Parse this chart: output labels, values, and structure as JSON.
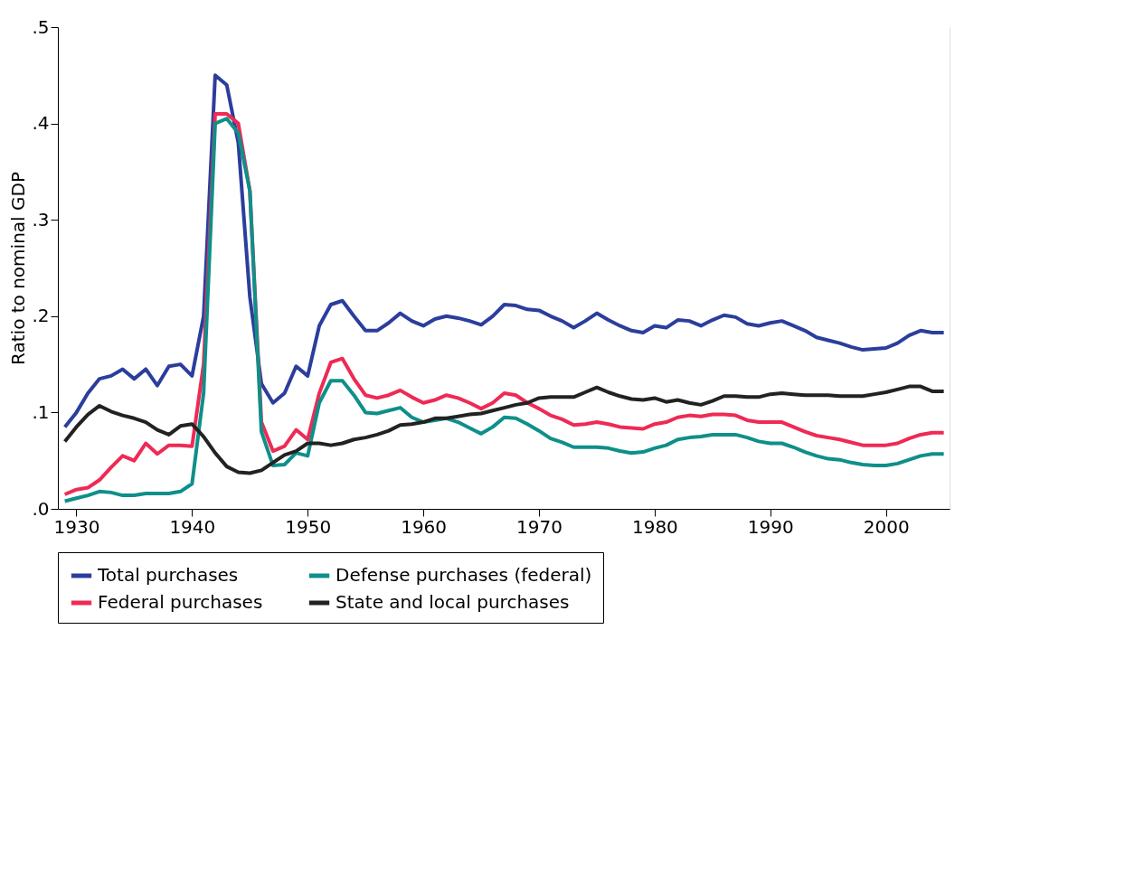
{
  "chart_data": {
    "type": "line",
    "ylabel": "Ratio to nominal GDP",
    "x": [
      1929,
      1930,
      1931,
      1932,
      1933,
      1934,
      1935,
      1936,
      1937,
      1938,
      1939,
      1940,
      1941,
      1942,
      1943,
      1944,
      1945,
      1946,
      1947,
      1948,
      1949,
      1950,
      1951,
      1952,
      1953,
      1954,
      1955,
      1956,
      1957,
      1958,
      1959,
      1960,
      1961,
      1962,
      1963,
      1964,
      1965,
      1966,
      1967,
      1968,
      1969,
      1970,
      1971,
      1972,
      1973,
      1974,
      1975,
      1976,
      1977,
      1978,
      1979,
      1980,
      1981,
      1982,
      1983,
      1984,
      1985,
      1986,
      1987,
      1988,
      1989,
      1990,
      1991,
      1992,
      1993,
      1994,
      1995,
      1996,
      1997,
      1998,
      1999,
      2000,
      2001,
      2002,
      2003,
      2004,
      2005
    ],
    "series": [
      {
        "name": "Total purchases",
        "color": "#2b3e9c",
        "values": [
          0.085,
          0.1,
          0.12,
          0.135,
          0.138,
          0.145,
          0.135,
          0.145,
          0.128,
          0.148,
          0.15,
          0.138,
          0.2,
          0.45,
          0.44,
          0.38,
          0.22,
          0.13,
          0.11,
          0.12,
          0.148,
          0.138,
          0.19,
          0.212,
          0.216,
          0.2,
          0.185,
          0.185,
          0.193,
          0.203,
          0.195,
          0.19,
          0.197,
          0.2,
          0.198,
          0.195,
          0.191,
          0.2,
          0.212,
          0.211,
          0.207,
          0.206,
          0.2,
          0.195,
          0.188,
          0.195,
          0.203,
          0.196,
          0.19,
          0.185,
          0.183,
          0.19,
          0.188,
          0.196,
          0.195,
          0.19,
          0.196,
          0.201,
          0.199,
          0.192,
          0.19,
          0.193,
          0.195,
          0.19,
          0.185,
          0.178,
          0.175,
          0.172,
          0.168,
          0.165,
          0.166,
          0.167,
          0.172,
          0.18,
          0.185,
          0.183,
          0.183
        ]
      },
      {
        "name": "Federal purchases",
        "color": "#ee2a55",
        "values": [
          0.015,
          0.02,
          0.022,
          0.03,
          0.043,
          0.055,
          0.05,
          0.068,
          0.057,
          0.066,
          0.066,
          0.065,
          0.15,
          0.41,
          0.41,
          0.4,
          0.33,
          0.09,
          0.06,
          0.065,
          0.082,
          0.072,
          0.12,
          0.152,
          0.156,
          0.135,
          0.118,
          0.115,
          0.118,
          0.123,
          0.116,
          0.11,
          0.113,
          0.118,
          0.115,
          0.11,
          0.104,
          0.11,
          0.12,
          0.118,
          0.11,
          0.104,
          0.097,
          0.093,
          0.087,
          0.088,
          0.09,
          0.088,
          0.085,
          0.084,
          0.083,
          0.088,
          0.09,
          0.095,
          0.097,
          0.096,
          0.098,
          0.098,
          0.097,
          0.092,
          0.09,
          0.09,
          0.09,
          0.085,
          0.08,
          0.076,
          0.074,
          0.072,
          0.069,
          0.066,
          0.066,
          0.066,
          0.068,
          0.073,
          0.077,
          0.079,
          0.079
        ]
      },
      {
        "name": "Defense purchases (federal)",
        "color": "#0f8f8a",
        "values": [
          0.008,
          0.011,
          0.014,
          0.018,
          0.017,
          0.014,
          0.014,
          0.016,
          0.016,
          0.016,
          0.018,
          0.026,
          0.12,
          0.4,
          0.405,
          0.39,
          0.33,
          0.08,
          0.045,
          0.046,
          0.058,
          0.055,
          0.11,
          0.133,
          0.133,
          0.118,
          0.1,
          0.099,
          0.102,
          0.105,
          0.095,
          0.09,
          0.092,
          0.094,
          0.09,
          0.084,
          0.078,
          0.085,
          0.095,
          0.094,
          0.088,
          0.081,
          0.073,
          0.069,
          0.064,
          0.064,
          0.064,
          0.063,
          0.06,
          0.058,
          0.059,
          0.063,
          0.066,
          0.072,
          0.074,
          0.075,
          0.077,
          0.077,
          0.077,
          0.074,
          0.07,
          0.068,
          0.068,
          0.064,
          0.059,
          0.055,
          0.052,
          0.051,
          0.048,
          0.046,
          0.045,
          0.045,
          0.047,
          0.051,
          0.055,
          0.057,
          0.057
        ]
      },
      {
        "name": "State and local purchases",
        "color": "#222222",
        "values": [
          0.07,
          0.085,
          0.098,
          0.107,
          0.101,
          0.097,
          0.094,
          0.09,
          0.082,
          0.077,
          0.086,
          0.088,
          0.075,
          0.058,
          0.044,
          0.038,
          0.037,
          0.04,
          0.048,
          0.056,
          0.06,
          0.068,
          0.068,
          0.066,
          0.068,
          0.072,
          0.074,
          0.077,
          0.081,
          0.087,
          0.088,
          0.09,
          0.094,
          0.094,
          0.096,
          0.098,
          0.099,
          0.102,
          0.105,
          0.108,
          0.11,
          0.115,
          0.116,
          0.116,
          0.116,
          0.121,
          0.126,
          0.121,
          0.117,
          0.114,
          0.113,
          0.115,
          0.111,
          0.113,
          0.11,
          0.108,
          0.112,
          0.117,
          0.117,
          0.116,
          0.116,
          0.119,
          0.12,
          0.119,
          0.118,
          0.118,
          0.118,
          0.117,
          0.117,
          0.117,
          0.119,
          0.121,
          0.124,
          0.127,
          0.127,
          0.122,
          0.122
        ]
      }
    ],
    "xlim": [
      1928.4,
      2005.5
    ],
    "xticks": [
      1930,
      1940,
      1950,
      1960,
      1970,
      1980,
      1990,
      2000
    ],
    "ylim": [
      0,
      0.5
    ],
    "yticks": [
      {
        "value": 0,
        "label": ".0"
      },
      {
        "value": 0.1,
        "label": ".1"
      },
      {
        "value": 0.2,
        "label": ".2"
      },
      {
        "value": 0.3,
        "label": ".3"
      },
      {
        "value": 0.4,
        "label": ".4"
      },
      {
        "value": 0.5,
        "label": ".5"
      }
    ],
    "grid": true,
    "legend": "bottom",
    "marker": "none",
    "line_style": "solid"
  }
}
